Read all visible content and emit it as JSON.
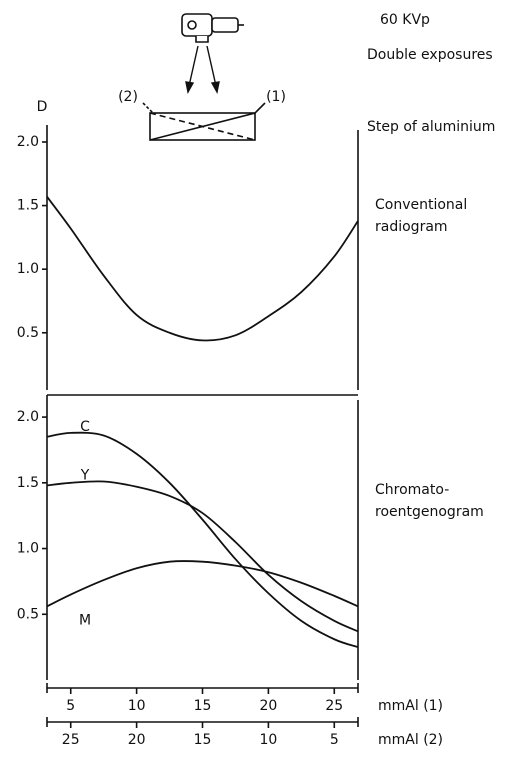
{
  "chart_data": [
    {
      "type": "line",
      "annotations": [
        "60 KVp",
        "Double exposures",
        "(2)",
        "(1)",
        "Step of aluminium"
      ],
      "ylabel": "D",
      "side_label": [
        "Conventional",
        "radiogram"
      ],
      "xlim": [
        3.2,
        26.8
      ],
      "ylim": [
        0.05,
        2.0
      ],
      "yticks": [
        {
          "value": 2.0,
          "label": "2.0"
        },
        1.5,
        {
          "value": 1.0,
          "label": "1.0"
        },
        0.5
      ],
      "x": [
        3.2,
        5,
        7.5,
        10,
        12.5,
        15,
        17.5,
        20,
        22.5,
        25,
        26.8
      ],
      "series": [
        {
          "color": "#111",
          "values": [
            1.57,
            1.32,
            0.95,
            0.64,
            0.5,
            0.44,
            0.48,
            0.63,
            0.82,
            1.1,
            1.38
          ]
        }
      ]
    },
    {
      "type": "line",
      "side_label": [
        "Chromato-",
        "roentgenogram"
      ],
      "xlim": [
        3.2,
        26.8
      ],
      "xticks": [
        5,
        10,
        15,
        20,
        25
      ],
      "xlabel": "mmAl (1)",
      "x2lim": [
        26.8,
        3.2
      ],
      "x2ticks": [
        25,
        20,
        15,
        10,
        5
      ],
      "x2label": "mmAl (2)",
      "ylim": [
        0,
        2.13
      ],
      "yticks": [
        {
          "value": 2.0,
          "label": "2.0"
        },
        1.5,
        {
          "value": 1.0,
          "label": "1.0"
        },
        0.5
      ],
      "x": [
        3.2,
        5,
        7.5,
        10,
        12.5,
        15,
        17.5,
        20,
        22.5,
        25,
        26.8
      ],
      "series": [
        {
          "name": "C",
          "color": "#111",
          "values": [
            1.85,
            1.88,
            1.86,
            1.72,
            1.5,
            1.22,
            0.92,
            0.66,
            0.45,
            0.31,
            0.25
          ]
        },
        {
          "name": "Y",
          "color": "#111",
          "values": [
            1.48,
            1.5,
            1.51,
            1.47,
            1.4,
            1.27,
            1.05,
            0.8,
            0.6,
            0.45,
            0.37
          ]
        },
        {
          "name": "M",
          "color": "#111",
          "values": [
            0.56,
            0.65,
            0.76,
            0.85,
            0.9,
            0.9,
            0.87,
            0.82,
            0.74,
            0.64,
            0.56
          ]
        }
      ]
    }
  ]
}
